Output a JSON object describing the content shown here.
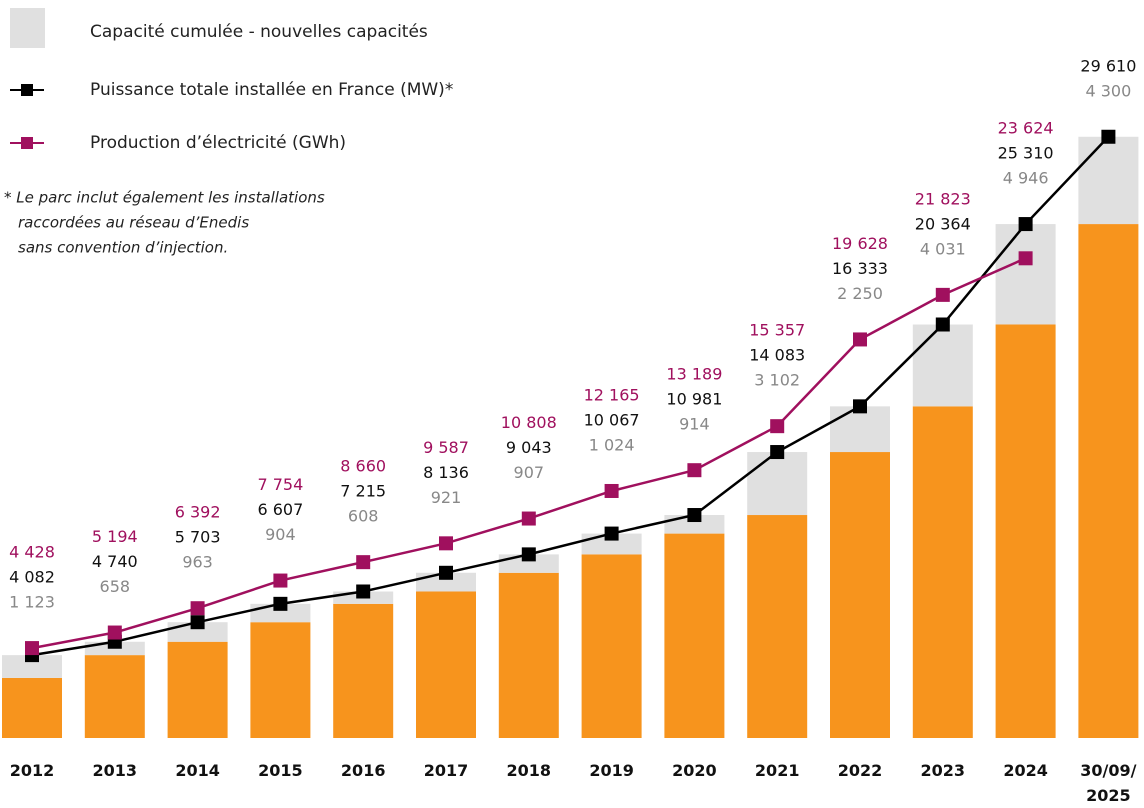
{
  "chart_data": {
    "type": "bar",
    "categories": [
      "2012",
      "2013",
      "2014",
      "2015",
      "2016",
      "2017",
      "2018",
      "2019",
      "2020",
      "2021",
      "2022",
      "2023",
      "2024",
      "30/09/\n2025"
    ],
    "ylim": [
      0,
      36000
    ],
    "note": [
      "* Le parc inclut également les installations",
      "raccordées au réseau d’Enedis",
      "sans convention d’injection."
    ],
    "series": [
      {
        "type": "bar",
        "color": "#f7941d",
        "values": [
          2959,
          4082,
          4740,
          5703,
          6607,
          7215,
          8136,
          9043,
          10067,
          10981,
          14083,
          16333,
          20364,
          25310
        ]
      },
      {
        "type": "bar",
        "name": "Capacité cumulée - nouvelles capacités",
        "color": "#e0e0e0",
        "label_color": "#888888",
        "values": [
          1123,
          658,
          963,
          904,
          608,
          921,
          907,
          1024,
          914,
          3102,
          2250,
          4031,
          4946,
          4300
        ],
        "value_labels": [
          "1 123",
          "658",
          "963",
          "904",
          "608",
          "921",
          "907",
          "1 024",
          "914",
          "3 102",
          "2 250",
          "4 031",
          "4 946",
          "4 300"
        ]
      },
      {
        "type": "line",
        "name": "Puissance totale installée en France (MW)*",
        "color": "#000000",
        "label_color": "#111111",
        "values": [
          4082,
          4740,
          5703,
          6607,
          7215,
          8136,
          9043,
          10067,
          10981,
          14083,
          16333,
          20364,
          25310,
          29610
        ],
        "value_labels": [
          "4 082",
          "4 740",
          "5 703",
          "6 607",
          "7 215",
          "8 136",
          "9 043",
          "10 067",
          "10 981",
          "14 083",
          "16 333",
          "20 364",
          "25 310",
          "29 610"
        ]
      },
      {
        "type": "line",
        "name": "Production d’électricité (GWh)",
        "color": "#a0105e",
        "label_color": "#a0105e",
        "values": [
          4428,
          5194,
          6392,
          7754,
          8660,
          9587,
          10808,
          12165,
          13189,
          15357,
          19628,
          21823,
          23624,
          null
        ],
        "value_labels": [
          "4 428",
          "5 194",
          "6 392",
          "7 754",
          "8 660",
          "9 587",
          "10 808",
          "12 165",
          "13 189",
          "15 357",
          "19 628",
          "21 823",
          "23 624",
          null
        ]
      }
    ]
  }
}
